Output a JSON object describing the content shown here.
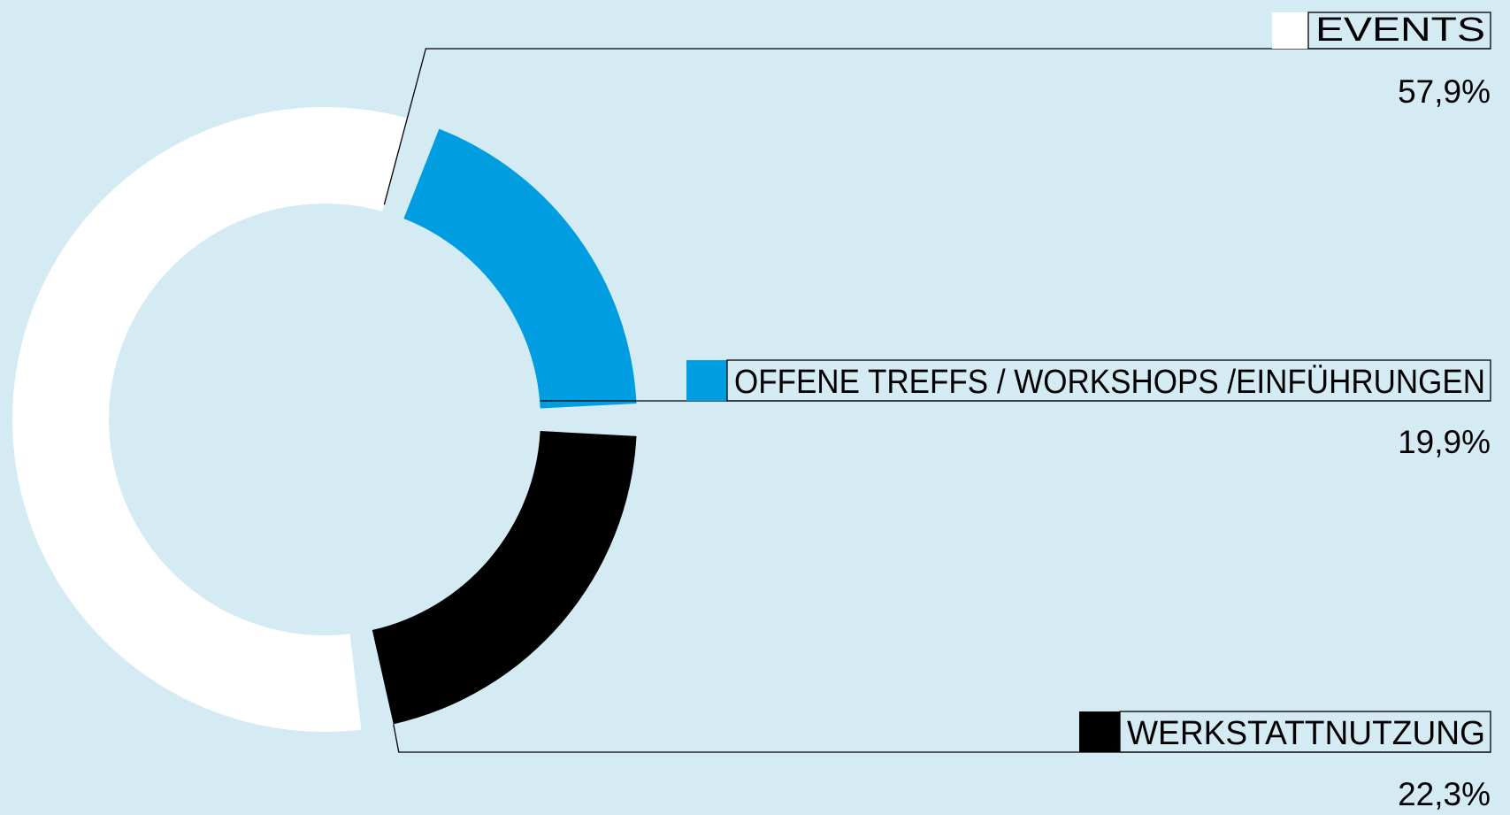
{
  "chart_data": {
    "type": "pie",
    "variant": "donut",
    "segments": [
      {
        "label": "EVENTS",
        "value": 57.9,
        "value_label": "57,9%",
        "color": "#ffffff"
      },
      {
        "label": "OFFENE TREFFS / WORKSHOPS /EINFÜHRUNGEN",
        "value": 19.9,
        "value_label": "19,9%",
        "color": "#009ee0"
      },
      {
        "label": "WERKSTATTNUTZUNG",
        "value": 22.3,
        "value_label": "22,3%",
        "color": "#000000"
      }
    ],
    "background": "#d4ebf4"
  }
}
